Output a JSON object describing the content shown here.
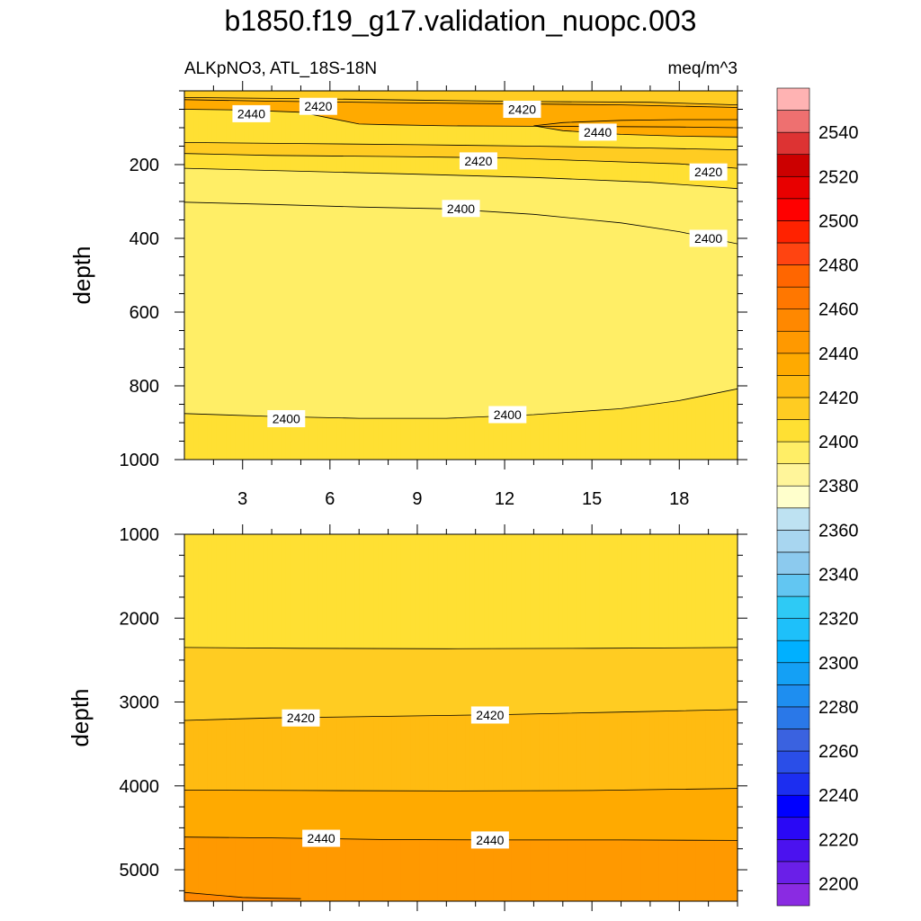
{
  "title": "b1850.f19_g17.validation_nuopc.003",
  "chart_data": [
    {
      "type": "contour",
      "panel": "upper",
      "left_label": "ALKpNO3, ATL_18S-18N",
      "right_label": "meq/m^3",
      "xlabel": "",
      "ylabel": "depth",
      "xlim": [
        1,
        20
      ],
      "ylim": [
        1000,
        0
      ],
      "x_ticks": [
        3,
        6,
        9,
        12,
        15,
        18
      ],
      "y_ticks": [
        200,
        400,
        600,
        800,
        1000
      ],
      "contour_lines": [
        {
          "name": "upper-2440-a",
          "level": 2440,
          "points": [
            [
              1,
              50
            ],
            [
              3,
              52
            ],
            [
              5,
              58
            ],
            [
              7,
              90
            ],
            [
              8,
              92
            ],
            [
              10,
              95
            ],
            [
              13,
              96
            ],
            [
              16,
              97
            ],
            [
              18,
              98
            ],
            [
              20,
              100
            ]
          ]
        },
        {
          "name": "upper-2440-b",
          "level": 2440,
          "points": [
            [
              13,
              95
            ],
            [
              14,
              86
            ],
            [
              16,
              80
            ],
            [
              18,
              78
            ],
            [
              20,
              78
            ]
          ]
        },
        {
          "name": "upper-2440-c",
          "level": 2440,
          "points": [
            [
              13,
              95
            ],
            [
              14,
              108
            ],
            [
              16,
              118
            ],
            [
              18,
              123
            ],
            [
              20,
              125
            ]
          ]
        },
        {
          "name": "upper-2430-a",
          "level": 2430,
          "points": [
            [
              1,
              24
            ],
            [
              4,
              28
            ],
            [
              8,
              32
            ],
            [
              12,
              35
            ],
            [
              16,
              38
            ],
            [
              20,
              45
            ]
          ]
        },
        {
          "name": "upper-2420-a",
          "level": 2420,
          "points": [
            [
              1,
              18
            ],
            [
              5,
              21
            ],
            [
              9,
              25
            ],
            [
              13,
              29
            ],
            [
              17,
              31
            ],
            [
              20,
              38
            ]
          ]
        },
        {
          "name": "upper-2420-b",
          "level": 2420,
          "points": [
            [
              1,
              170
            ],
            [
              4,
              175
            ],
            [
              8,
              178
            ],
            [
              12,
              182
            ],
            [
              15,
              190
            ],
            [
              18,
              198
            ],
            [
              20,
              210
            ]
          ]
        },
        {
          "name": "upper-2410-a",
          "level": 2410,
          "points": [
            [
              1,
              140
            ],
            [
              5,
              143
            ],
            [
              9,
              146
            ],
            [
              13,
              150
            ],
            [
              17,
              155
            ],
            [
              20,
              160
            ]
          ]
        },
        {
          "name": "upper-2410-b",
          "level": 2410,
          "points": [
            [
              1,
              210
            ],
            [
              5,
              218
            ],
            [
              9,
              226
            ],
            [
              13,
              235
            ],
            [
              17,
              248
            ],
            [
              20,
              265
            ]
          ]
        },
        {
          "name": "upper-2400-a",
          "level": 2400,
          "points": [
            [
              1,
              302
            ],
            [
              4,
              308
            ],
            [
              7,
              315
            ],
            [
              10,
              320
            ],
            [
              13,
              335
            ],
            [
              16,
              358
            ],
            [
              18,
              382
            ],
            [
              20,
              415
            ]
          ]
        },
        {
          "name": "upper-2400-b",
          "level": 2400,
          "points": [
            [
              1,
              875
            ],
            [
              4,
              883
            ],
            [
              7,
              888
            ],
            [
              10,
              888
            ],
            [
              13,
              878
            ],
            [
              16,
              862
            ],
            [
              18,
              840
            ],
            [
              20,
              808
            ]
          ]
        }
      ],
      "contour_labels": [
        {
          "text": "2440",
          "x": 3.3,
          "y": 62
        },
        {
          "text": "2420",
          "x": 5.6,
          "y": 42
        },
        {
          "text": "2420",
          "x": 12.6,
          "y": 50
        },
        {
          "text": "2440",
          "x": 15.2,
          "y": 112
        },
        {
          "text": "2420",
          "x": 11.1,
          "y": 190
        },
        {
          "text": "2420",
          "x": 19.0,
          "y": 220
        },
        {
          "text": "2400",
          "x": 10.5,
          "y": 319
        },
        {
          "text": "2400",
          "x": 19.0,
          "y": 400
        },
        {
          "text": "2400",
          "x": 4.5,
          "y": 889
        },
        {
          "text": "2400",
          "x": 12.1,
          "y": 878
        }
      ]
    },
    {
      "type": "contour",
      "panel": "lower",
      "xlabel": "",
      "ylabel": "depth",
      "xlim": [
        1,
        20
      ],
      "ylim": [
        5375,
        1000
      ],
      "x_ticks": [
        3,
        6,
        9,
        12,
        15,
        18
      ],
      "y_ticks": [
        1000,
        2000,
        3000,
        4000,
        5000
      ],
      "contour_lines": [
        {
          "name": "lower-2410",
          "level": 2410,
          "points": [
            [
              1,
              2350
            ],
            [
              5,
              2360
            ],
            [
              10,
              2365
            ],
            [
              15,
              2360
            ],
            [
              20,
              2350
            ]
          ]
        },
        {
          "name": "lower-2420",
          "level": 2420,
          "points": [
            [
              1,
              3220
            ],
            [
              4,
              3190
            ],
            [
              8,
              3170
            ],
            [
              12,
              3150
            ],
            [
              16,
              3120
            ],
            [
              20,
              3090
            ]
          ]
        },
        {
          "name": "lower-2430",
          "level": 2430,
          "points": [
            [
              1,
              4050
            ],
            [
              5,
              4055
            ],
            [
              10,
              4060
            ],
            [
              15,
              4055
            ],
            [
              20,
              4030
            ]
          ]
        },
        {
          "name": "lower-2440",
          "level": 2440,
          "points": [
            [
              1,
              4610
            ],
            [
              4,
              4620
            ],
            [
              8,
              4640
            ],
            [
              12,
              4645
            ],
            [
              16,
              4645
            ],
            [
              20,
              4650
            ]
          ]
        },
        {
          "name": "lower-2450",
          "level": 2450,
          "points": [
            [
              1,
              5270
            ],
            [
              2,
              5300
            ],
            [
              3,
              5330
            ],
            [
              4,
              5340
            ],
            [
              5,
              5345
            ]
          ]
        }
      ],
      "contour_labels": [
        {
          "text": "2420",
          "x": 5.0,
          "y": 3190
        },
        {
          "text": "2420",
          "x": 11.5,
          "y": 3155
        },
        {
          "text": "2440",
          "x": 5.7,
          "y": 4625
        },
        {
          "text": "2440",
          "x": 11.5,
          "y": 4645
        }
      ]
    }
  ],
  "colorbar": {
    "levels": [
      2200,
      2210,
      2220,
      2230,
      2240,
      2250,
      2260,
      2270,
      2280,
      2290,
      2300,
      2310,
      2320,
      2330,
      2340,
      2350,
      2360,
      2370,
      2380,
      2390,
      2400,
      2410,
      2420,
      2430,
      2440,
      2450,
      2460,
      2470,
      2480,
      2490,
      2500,
      2510,
      2520,
      2530,
      2540,
      2550
    ],
    "labels": [
      "2200",
      "2220",
      "2240",
      "2260",
      "2280",
      "2300",
      "2320",
      "2340",
      "2360",
      "2380",
      "2400",
      "2420",
      "2440",
      "2460",
      "2480",
      "2500",
      "2520",
      "2540"
    ],
    "colors": [
      "#8a2be2",
      "#6a1fe8",
      "#4b12ef",
      "#2a08f5",
      "#0000ff",
      "#1c2ef0",
      "#2a4ee8",
      "#3a62e0",
      "#2a78e8",
      "#1e8ef0",
      "#14a0f5",
      "#00b0ff",
      "#1ec0fa",
      "#2ecaf5",
      "#62c6f2",
      "#8ccaee",
      "#a8d6f0",
      "#bee2f2",
      "#ffffcc",
      "#fff59a",
      "#ffee66",
      "#ffe033",
      "#ffcc22",
      "#ffbb11",
      "#ffaa00",
      "#ff9900",
      "#ff8800",
      "#ff7700",
      "#ff6600",
      "#ff4411",
      "#ff2200",
      "#ff0000",
      "#e80000",
      "#cc0000",
      "#dd3333",
      "#ee7070",
      "#ffb3b3"
    ]
  }
}
